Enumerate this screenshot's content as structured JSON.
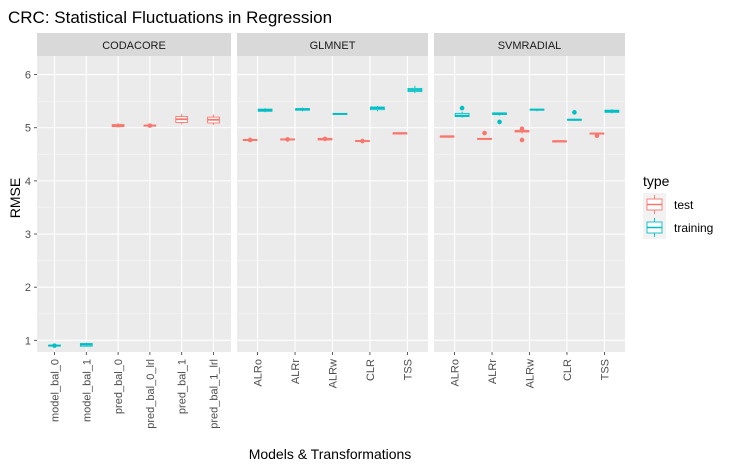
{
  "chart_data": {
    "type": "box",
    "title": "CRC: Statistical Fluctuations in Regression",
    "xlabel": "Models & Transformations",
    "ylabel": "RMSE",
    "ylim": [
      0.78,
      6.35
    ],
    "yticks": [
      1,
      2,
      3,
      4,
      5,
      6
    ],
    "grid": true,
    "legend": {
      "title": "type",
      "position": "right",
      "entries": [
        {
          "name": "test",
          "color": "#F8766D"
        },
        {
          "name": "training",
          "color": "#00BFC4"
        }
      ]
    },
    "colors": {
      "test": "#F8766D",
      "training": "#00BFC4"
    },
    "panels": [
      {
        "name": "CODACORE",
        "categories": [
          "model_bal_0",
          "model_bal_1",
          "pred_bal_0",
          "pred_bal_0_lrl",
          "pred_bal_1",
          "pred_bal_1_lrl"
        ],
        "boxes": [
          {
            "category": "model_bal_0",
            "type": "training",
            "q1": 0.89,
            "median": 0.9,
            "q3": 0.91,
            "min": 0.88,
            "max": 0.92,
            "outliers": [
              0.9
            ]
          },
          {
            "category": "model_bal_1",
            "type": "training",
            "q1": 0.89,
            "median": 0.92,
            "q3": 0.94,
            "min": 0.88,
            "max": 0.96,
            "outliers": []
          },
          {
            "category": "pred_bal_0",
            "type": "test",
            "q1": 5.02,
            "median": 5.04,
            "q3": 5.06,
            "min": 5.0,
            "max": 5.09,
            "outliers": []
          },
          {
            "category": "pred_bal_0_lrl",
            "type": "test",
            "q1": 5.03,
            "median": 5.04,
            "q3": 5.05,
            "min": 5.01,
            "max": 5.06,
            "outliers": [
              5.04
            ]
          },
          {
            "category": "pred_bal_1",
            "type": "test",
            "q1": 5.1,
            "median": 5.16,
            "q3": 5.21,
            "min": 5.06,
            "max": 5.26,
            "outliers": []
          },
          {
            "category": "pred_bal_1_lrl",
            "type": "test",
            "q1": 5.09,
            "median": 5.15,
            "q3": 5.2,
            "min": 5.05,
            "max": 5.25,
            "outliers": []
          }
        ]
      },
      {
        "name": "GLMNET",
        "categories": [
          "ALRo",
          "ALRr",
          "ALRw",
          "CLR",
          "TSS"
        ],
        "boxes": [
          {
            "category": "ALRo",
            "type": "test",
            "q1": 4.76,
            "median": 4.77,
            "q3": 4.78,
            "min": 4.75,
            "max": 4.79,
            "outliers": [
              4.77
            ]
          },
          {
            "category": "ALRo",
            "type": "training",
            "q1": 5.31,
            "median": 5.33,
            "q3": 5.35,
            "min": 5.29,
            "max": 5.37,
            "outliers": []
          },
          {
            "category": "ALRr",
            "type": "test",
            "q1": 4.77,
            "median": 4.78,
            "q3": 4.79,
            "min": 4.76,
            "max": 4.8,
            "outliers": [
              4.78
            ]
          },
          {
            "category": "ALRr",
            "type": "training",
            "q1": 5.33,
            "median": 5.35,
            "q3": 5.36,
            "min": 5.31,
            "max": 5.38,
            "outliers": []
          },
          {
            "category": "ALRw",
            "type": "test",
            "q1": 4.77,
            "median": 4.79,
            "q3": 4.8,
            "min": 4.76,
            "max": 4.81,
            "outliers": [
              4.79
            ]
          },
          {
            "category": "ALRw",
            "type": "training",
            "q1": 5.25,
            "median": 5.26,
            "q3": 5.27,
            "min": 5.24,
            "max": 5.28,
            "outliers": []
          },
          {
            "category": "CLR",
            "type": "test",
            "q1": 4.74,
            "median": 4.75,
            "q3": 4.76,
            "min": 4.73,
            "max": 4.77,
            "outliers": [
              4.75
            ]
          },
          {
            "category": "CLR",
            "type": "training",
            "q1": 5.34,
            "median": 5.37,
            "q3": 5.39,
            "min": 5.31,
            "max": 5.41,
            "outliers": []
          },
          {
            "category": "TSS",
            "type": "test",
            "q1": 4.89,
            "median": 4.9,
            "q3": 4.9,
            "min": 4.88,
            "max": 4.91,
            "outliers": []
          },
          {
            "category": "TSS",
            "type": "training",
            "q1": 5.68,
            "median": 5.71,
            "q3": 5.74,
            "min": 5.65,
            "max": 5.79,
            "outliers": []
          }
        ]
      },
      {
        "name": "SVMRADIAL",
        "categories": [
          "ALRo",
          "ALRr",
          "ALRw",
          "CLR",
          "TSS"
        ],
        "boxes": [
          {
            "category": "ALRo",
            "type": "test",
            "q1": 4.83,
            "median": 4.84,
            "q3": 4.84,
            "min": 4.83,
            "max": 4.85,
            "outliers": []
          },
          {
            "category": "ALRo",
            "type": "training",
            "q1": 5.21,
            "median": 5.23,
            "q3": 5.27,
            "min": 5.19,
            "max": 5.3,
            "outliers": [
              5.37
            ]
          },
          {
            "category": "ALRr",
            "type": "test",
            "q1": 4.78,
            "median": 4.79,
            "q3": 4.8,
            "min": 4.77,
            "max": 4.81,
            "outliers": [
              4.9
            ]
          },
          {
            "category": "ALRr",
            "type": "training",
            "q1": 5.25,
            "median": 5.26,
            "q3": 5.28,
            "min": 5.23,
            "max": 5.29,
            "outliers": [
              5.11
            ]
          },
          {
            "category": "ALRw",
            "type": "test",
            "q1": 4.92,
            "median": 4.94,
            "q3": 4.95,
            "min": 4.89,
            "max": 4.96,
            "outliers": [
              4.98,
              4.77
            ]
          },
          {
            "category": "ALRw",
            "type": "training",
            "q1": 5.33,
            "median": 5.34,
            "q3": 5.35,
            "min": 5.31,
            "max": 5.36,
            "outliers": []
          },
          {
            "category": "CLR",
            "type": "test",
            "q1": 4.74,
            "median": 4.75,
            "q3": 4.75,
            "min": 4.74,
            "max": 4.76,
            "outliers": []
          },
          {
            "category": "CLR",
            "type": "training",
            "q1": 5.14,
            "median": 5.15,
            "q3": 5.16,
            "min": 5.13,
            "max": 5.17,
            "outliers": [
              5.29
            ]
          },
          {
            "category": "TSS",
            "type": "test",
            "q1": 4.88,
            "median": 4.89,
            "q3": 4.9,
            "min": 4.86,
            "max": 4.91,
            "outliers": [
              4.85
            ]
          },
          {
            "category": "TSS",
            "type": "training",
            "q1": 5.29,
            "median": 5.31,
            "q3": 5.33,
            "min": 5.27,
            "max": 5.35,
            "outliers": []
          }
        ]
      }
    ]
  }
}
